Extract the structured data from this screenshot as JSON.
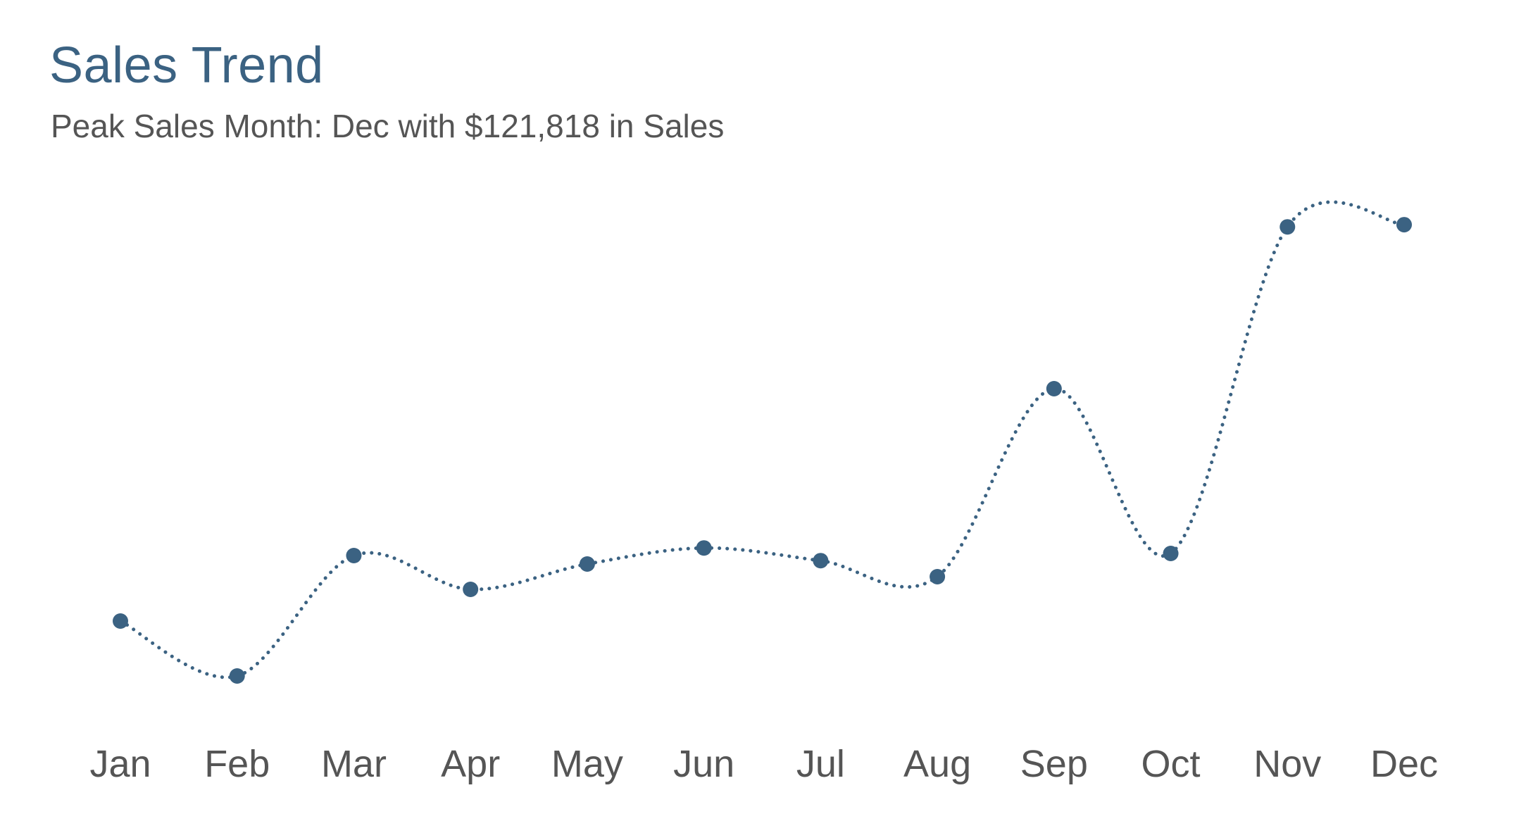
{
  "chart_data": {
    "type": "line",
    "title": "Sales Trend",
    "subtitle": "Peak Sales Month: Dec with $121,818 in Sales",
    "categories": [
      "Jan",
      "Feb",
      "Mar",
      "Apr",
      "May",
      "Jun",
      "Jul",
      "Aug",
      "Sep",
      "Oct",
      "Nov",
      "Dec"
    ],
    "series": [
      {
        "values": [
          28000,
          15000,
          43500,
          35500,
          41500,
          45300,
          42300,
          38500,
          83000,
          44000,
          121300,
          121818
        ]
      }
    ],
    "line_style": "dotted",
    "smooth": true,
    "markers": true,
    "grid": false,
    "y_axis_visible": false,
    "legend": "none",
    "ylim": [
      0,
      140000
    ],
    "colors": {
      "title": "#3b6282",
      "subtitle": "#555555",
      "line": "#3b6282",
      "marker": "#3b6282",
      "tick": "#555555"
    }
  }
}
